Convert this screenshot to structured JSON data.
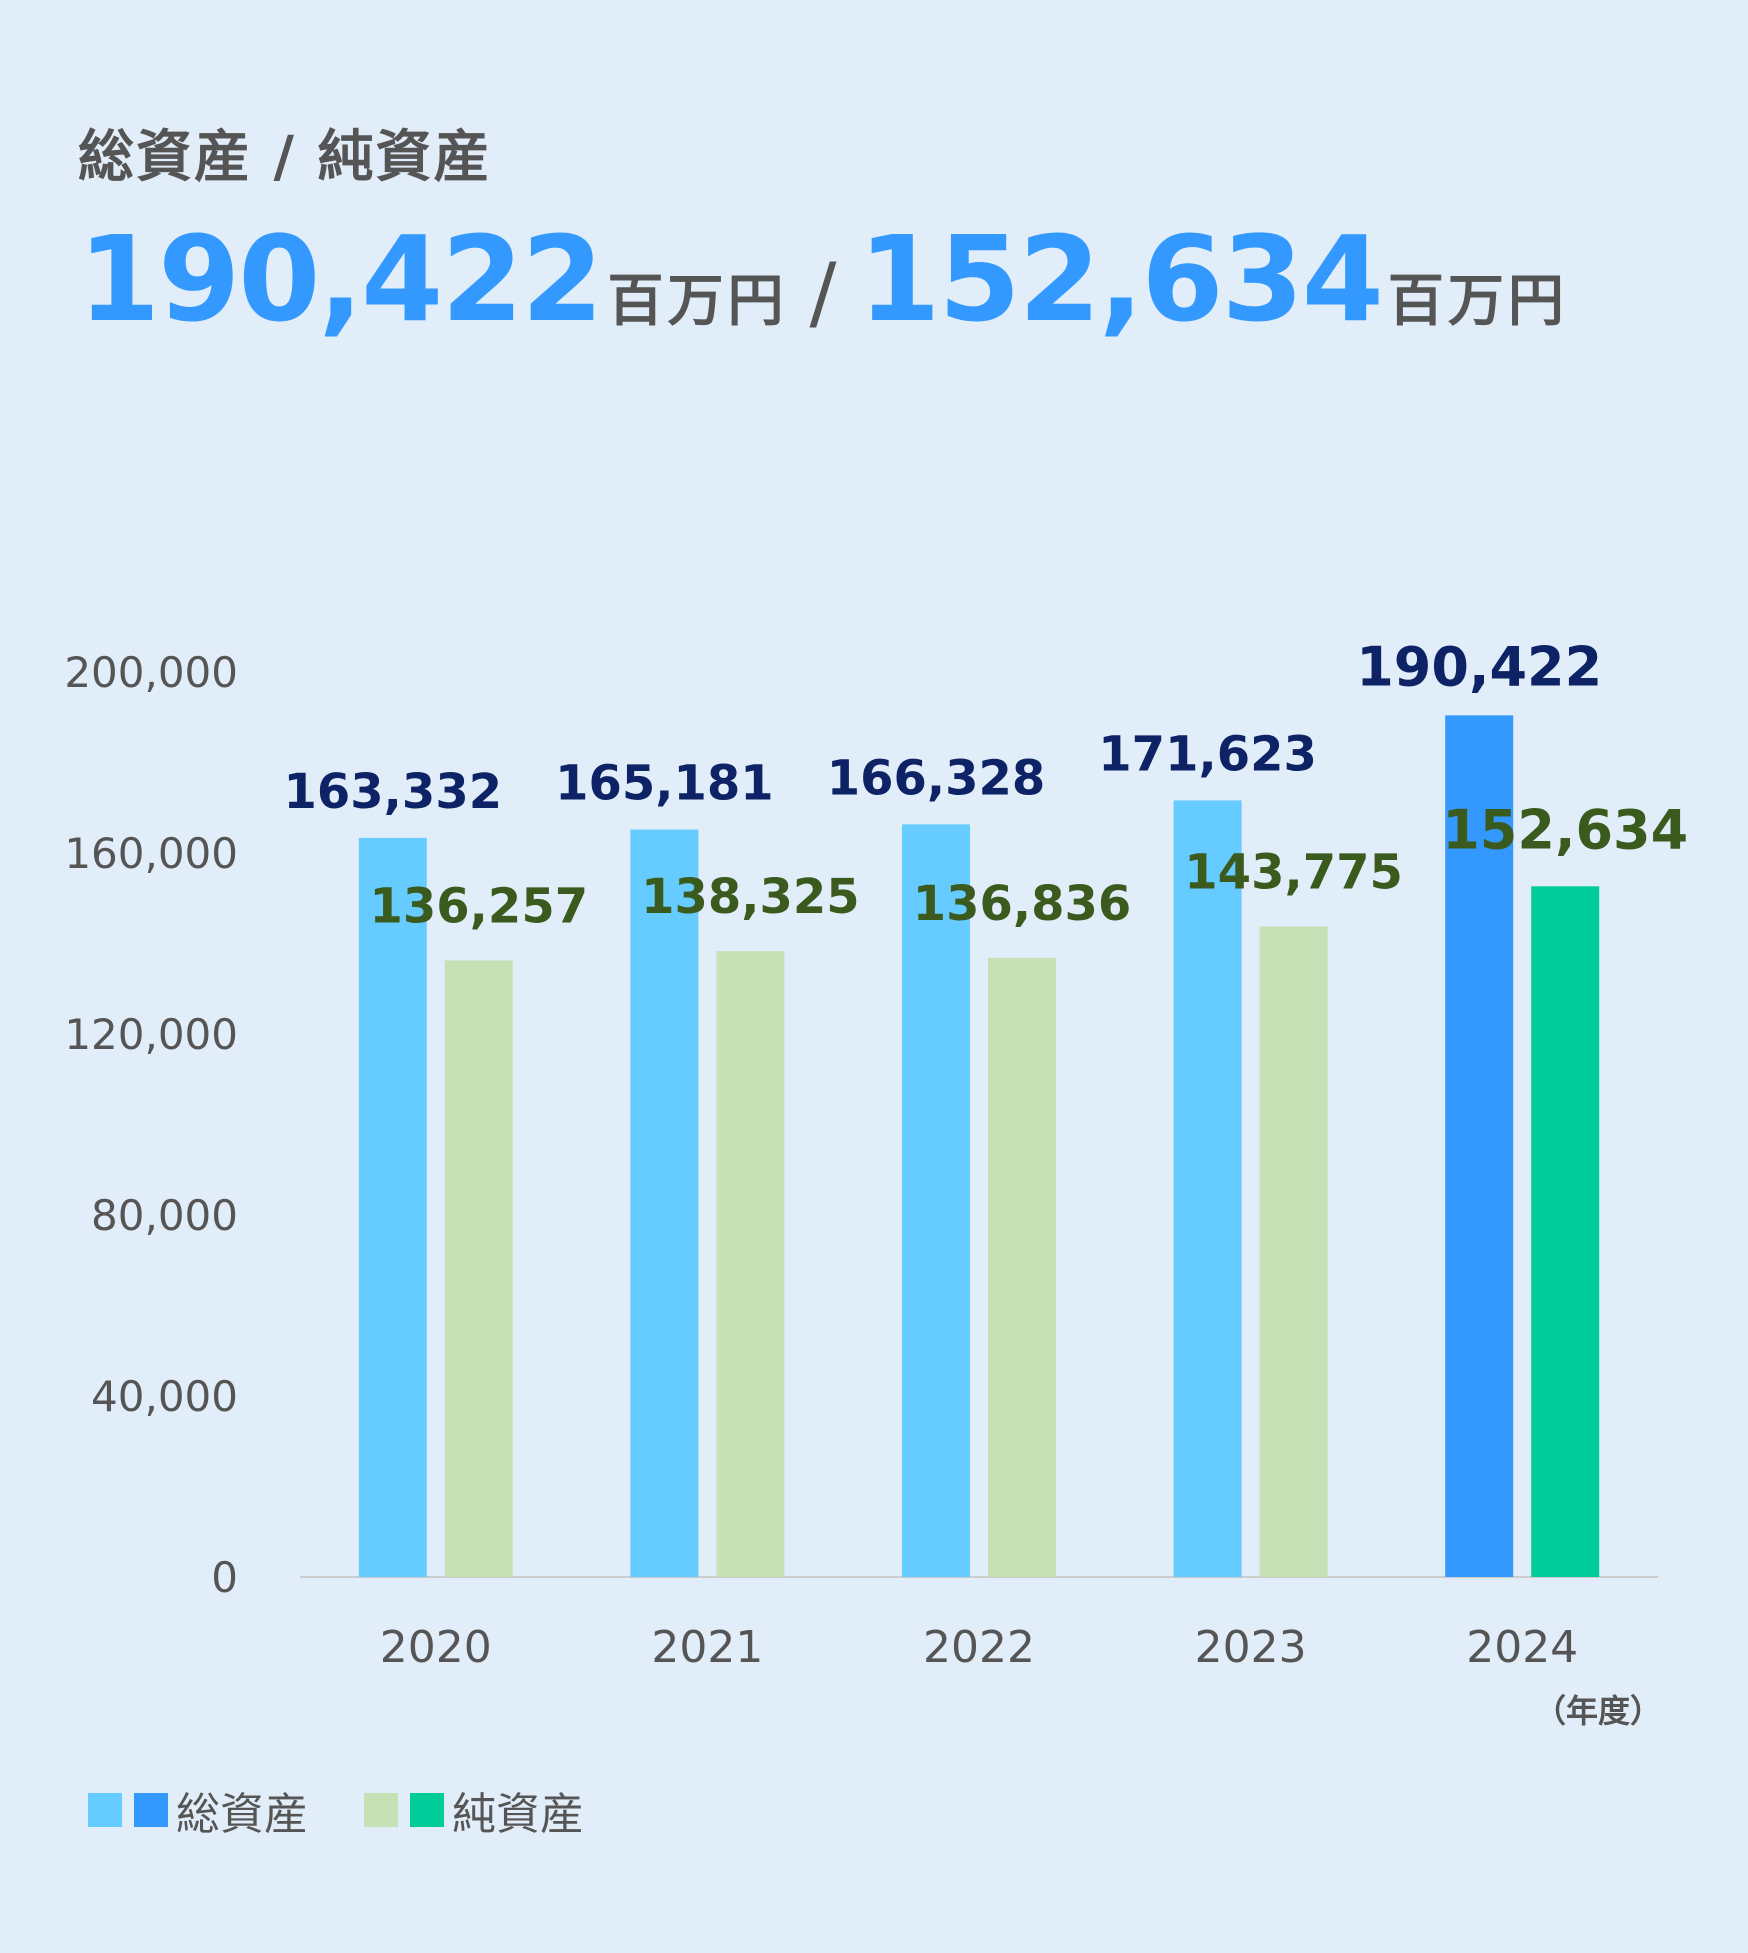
{
  "title": "総資産 / 純資産",
  "headline": {
    "total_assets": "190,422",
    "total_unit": "百万円",
    "separator": "/",
    "net_assets": "152,634",
    "net_unit": "百万円"
  },
  "colors": {
    "background": "#e1edf8",
    "total_assets": "#66cbff",
    "total_assets_highlight": "#3399ff",
    "net_assets": "#c6e1b6",
    "net_assets_highlight": "#00cc99",
    "total_label": "#0d2366",
    "net_label": "#3b5a1d",
    "headline_number": "#3399ff",
    "text": "#555555",
    "axis": "#cccccc"
  },
  "chart_data": {
    "type": "bar",
    "categories": [
      "2020",
      "2021",
      "2022",
      "2023",
      "2024"
    ],
    "series": [
      {
        "name": "総資産",
        "values": [
          163332,
          165181,
          166328,
          171623,
          190422
        ],
        "labels": [
          "163,332",
          "165,181",
          "166,328",
          "171,623",
          "190,422"
        ]
      },
      {
        "name": "純資産",
        "values": [
          136257,
          138325,
          136836,
          143775,
          152634
        ],
        "labels": [
          "136,257",
          "138,325",
          "136,836",
          "143,775",
          "152,634"
        ]
      }
    ],
    "highlight_category": "2024",
    "yticks": [
      0,
      40000,
      80000,
      120000,
      160000,
      200000
    ],
    "ytick_labels": [
      "0",
      "40,000",
      "80,000",
      "120,000",
      "160,000",
      "200,000"
    ],
    "ylim": [
      0,
      200000
    ],
    "xlabel": "（年度）",
    "ylabel": "",
    "grid": false,
    "legend": "bottom-left"
  },
  "legend": {
    "total_label": "総資産",
    "net_label": "純資産"
  }
}
